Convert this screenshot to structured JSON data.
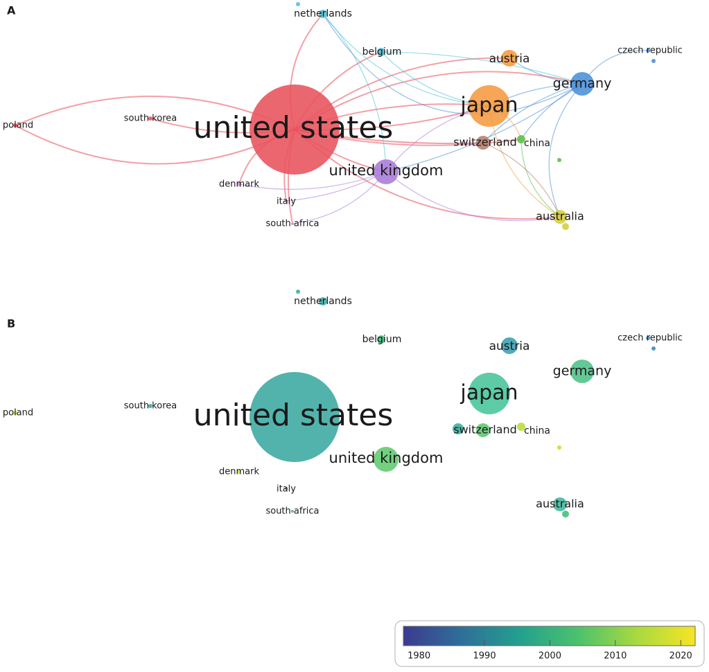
{
  "panels": [
    {
      "label": "A",
      "nodes": [
        {
          "label": "united states",
          "color": "#e8525c"
        },
        {
          "label": "japan",
          "color": "#f59a3f"
        },
        {
          "label": "united kingdom",
          "color": "#a97bd8"
        },
        {
          "label": "germany",
          "color": "#4a8fd8"
        },
        {
          "label": "austria",
          "color": "#f59a3f"
        },
        {
          "label": "switzerland",
          "color": "#b5806a"
        },
        {
          "label": "china",
          "color": "#5cbf4a"
        },
        {
          "label": "australia",
          "color": "#d3cf3c"
        },
        {
          "label": "belgium",
          "color": "#4fc3d9"
        },
        {
          "label": "netherlands",
          "color": "#4fc3d9"
        },
        {
          "label": "czech republic",
          "color": "#4a8fd8"
        },
        {
          "label": "poland",
          "color": "#e8525c"
        },
        {
          "label": "south korea",
          "color": "#e8525c"
        },
        {
          "label": "denmark",
          "color": "#d88be0"
        },
        {
          "label": "italy",
          "color": "#a97bd8"
        },
        {
          "label": "south africa",
          "color": "#d88be0"
        }
      ]
    },
    {
      "label": "B",
      "nodes": [
        {
          "label": "united states",
          "color": "#3aa9a0"
        },
        {
          "label": "japan",
          "color": "#46c49a"
        },
        {
          "label": "united kingdom",
          "color": "#5ec96e"
        },
        {
          "label": "germany",
          "color": "#4fc088"
        },
        {
          "label": "austria",
          "color": "#3a9fb0"
        },
        {
          "label": "switzerland",
          "color": "#5cc870"
        },
        {
          "label": "china",
          "color": "#b8dc3c"
        },
        {
          "label": "australia",
          "color": "#40b79c"
        },
        {
          "label": "belgium",
          "color": "#3cc07a"
        },
        {
          "label": "netherlands",
          "color": "#3aafa6"
        },
        {
          "label": "czech republic",
          "color": "#3f8cc4"
        },
        {
          "label": "poland",
          "color": "#c6d83a"
        },
        {
          "label": "south korea",
          "color": "#3aa8a0"
        },
        {
          "label": "denmark",
          "color": "#d8e03a"
        },
        {
          "label": "italy",
          "color": "#3d8cb8"
        },
        {
          "label": "south africa",
          "color": "#4aa6b0"
        }
      ]
    }
  ],
  "colorbar": {
    "range": [
      1977.6,
      2022.2
    ],
    "ticks": [
      1980,
      1990,
      2000,
      2010,
      2020
    ],
    "colors": [
      "#3b3b8f",
      "#2f6f99",
      "#23a08e",
      "#4cc26c",
      "#a9d940",
      "#f7e524"
    ]
  }
}
